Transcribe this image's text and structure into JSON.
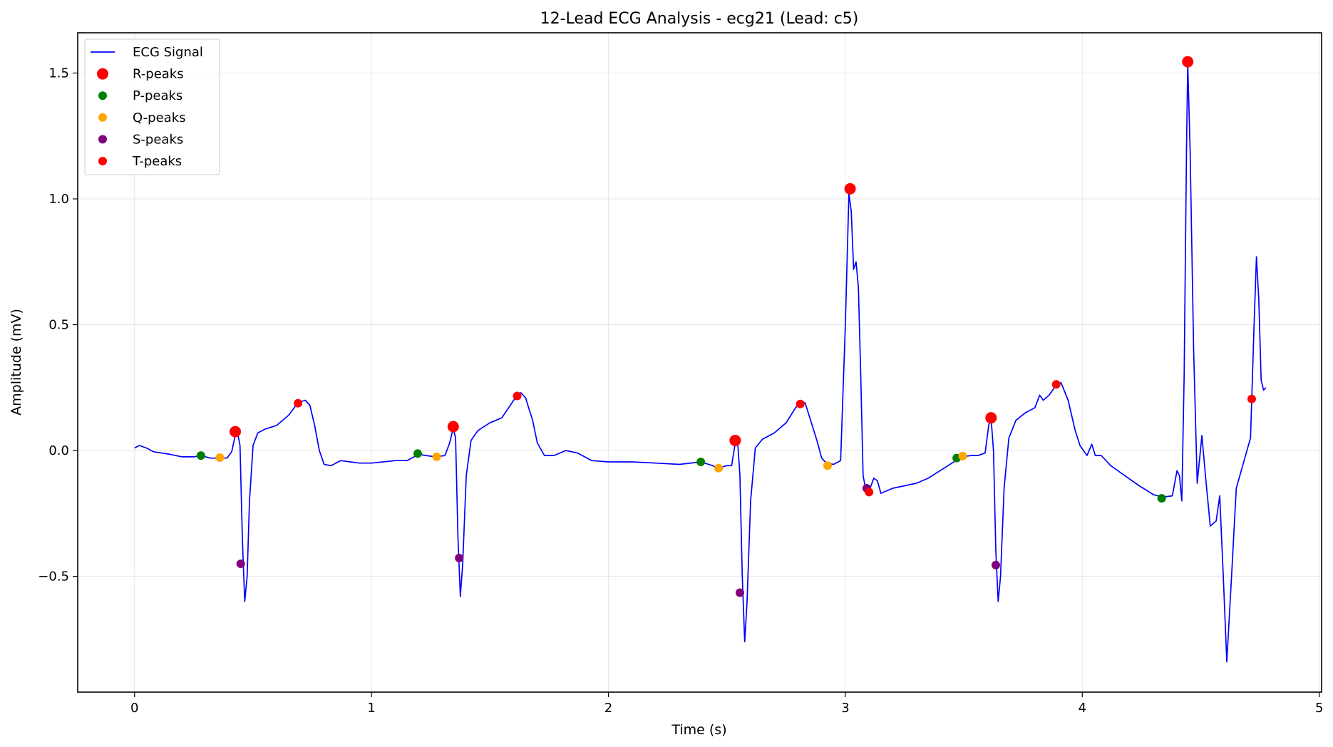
{
  "chart_data": {
    "type": "line",
    "title": "12-Lead ECG Analysis - ecg21 (Lead: c5)",
    "xlabel": "Time (s)",
    "ylabel": "Amplitude (mV)",
    "xlim": [
      -0.24,
      5.01
    ],
    "ylim": [
      -0.96,
      1.66
    ],
    "xticks": [
      0,
      1,
      2,
      3,
      4,
      5
    ],
    "xtick_labels": [
      "0",
      "1",
      "2",
      "3",
      "4",
      "5"
    ],
    "yticks": [
      -0.5,
      0.0,
      0.5,
      1.0,
      1.5
    ],
    "ytick_labels": [
      "−0.5",
      "0.0",
      "0.5",
      "1.0",
      "1.5"
    ],
    "grid": true,
    "legend_position": "top-left",
    "colors": {
      "signal": "#0000ff",
      "r_peaks": "#ff0000",
      "p_peaks": "#008000",
      "q_peaks": "#ffa500",
      "s_peaks": "#800080",
      "t_peaks": "#ff0000"
    },
    "series": [
      {
        "name": "ECG Signal",
        "kind": "line",
        "color": "#0000ff",
        "points": [
          [
            0.0,
            0.01
          ],
          [
            0.02,
            0.02
          ],
          [
            0.05,
            0.01
          ],
          [
            0.08,
            -0.005
          ],
          [
            0.15,
            -0.015
          ],
          [
            0.2,
            -0.025
          ],
          [
            0.25,
            -0.025
          ],
          [
            0.28,
            -0.02
          ],
          [
            0.32,
            -0.03
          ],
          [
            0.36,
            -0.03
          ],
          [
            0.39,
            -0.03
          ],
          [
            0.41,
            -0.005
          ],
          [
            0.425,
            0.06
          ],
          [
            0.435,
            0.07
          ],
          [
            0.445,
            0.02
          ],
          [
            0.455,
            -0.35
          ],
          [
            0.465,
            -0.6
          ],
          [
            0.475,
            -0.5
          ],
          [
            0.485,
            -0.2
          ],
          [
            0.5,
            0.02
          ],
          [
            0.52,
            0.07
          ],
          [
            0.55,
            0.085
          ],
          [
            0.6,
            0.1
          ],
          [
            0.65,
            0.14
          ],
          [
            0.69,
            0.19
          ],
          [
            0.72,
            0.2
          ],
          [
            0.74,
            0.18
          ],
          [
            0.76,
            0.1
          ],
          [
            0.78,
            0.0
          ],
          [
            0.8,
            -0.055
          ],
          [
            0.83,
            -0.06
          ],
          [
            0.87,
            -0.04
          ],
          [
            0.91,
            -0.045
          ],
          [
            0.95,
            -0.05
          ],
          [
            1.0,
            -0.05
          ],
          [
            1.05,
            -0.045
          ],
          [
            1.1,
            -0.04
          ],
          [
            1.15,
            -0.04
          ],
          [
            1.2,
            -0.015
          ],
          [
            1.23,
            -0.02
          ],
          [
            1.27,
            -0.025
          ],
          [
            1.31,
            -0.02
          ],
          [
            1.33,
            0.03
          ],
          [
            1.345,
            0.09
          ],
          [
            1.355,
            0.05
          ],
          [
            1.365,
            -0.35
          ],
          [
            1.375,
            -0.58
          ],
          [
            1.385,
            -0.45
          ],
          [
            1.4,
            -0.1
          ],
          [
            1.42,
            0.04
          ],
          [
            1.45,
            0.08
          ],
          [
            1.5,
            0.11
          ],
          [
            1.55,
            0.13
          ],
          [
            1.6,
            0.2
          ],
          [
            1.63,
            0.23
          ],
          [
            1.65,
            0.21
          ],
          [
            1.68,
            0.12
          ],
          [
            1.7,
            0.03
          ],
          [
            1.73,
            -0.02
          ],
          [
            1.77,
            -0.02
          ],
          [
            1.82,
            0.0
          ],
          [
            1.87,
            -0.01
          ],
          [
            1.93,
            -0.04
          ],
          [
            2.0,
            -0.045
          ],
          [
            2.1,
            -0.045
          ],
          [
            2.2,
            -0.05
          ],
          [
            2.3,
            -0.055
          ],
          [
            2.39,
            -0.045
          ],
          [
            2.44,
            -0.06
          ],
          [
            2.46,
            -0.07
          ],
          [
            2.5,
            -0.06
          ],
          [
            2.52,
            -0.06
          ],
          [
            2.535,
            0.03
          ],
          [
            2.545,
            0.04
          ],
          [
            2.555,
            -0.1
          ],
          [
            2.565,
            -0.5
          ],
          [
            2.575,
            -0.76
          ],
          [
            2.585,
            -0.6
          ],
          [
            2.6,
            -0.2
          ],
          [
            2.62,
            0.01
          ],
          [
            2.65,
            0.045
          ],
          [
            2.7,
            0.07
          ],
          [
            2.75,
            0.11
          ],
          [
            2.79,
            0.17
          ],
          [
            2.81,
            0.19
          ],
          [
            2.83,
            0.19
          ],
          [
            2.85,
            0.13
          ],
          [
            2.88,
            0.04
          ],
          [
            2.9,
            -0.03
          ],
          [
            2.92,
            -0.05
          ],
          [
            2.95,
            -0.055
          ],
          [
            2.98,
            -0.04
          ],
          [
            3.0,
            0.5
          ],
          [
            3.015,
            1.02
          ],
          [
            3.025,
            0.95
          ],
          [
            3.035,
            0.72
          ],
          [
            3.045,
            0.75
          ],
          [
            3.055,
            0.65
          ],
          [
            3.065,
            0.3
          ],
          [
            3.075,
            -0.1
          ],
          [
            3.085,
            -0.15
          ],
          [
            3.1,
            -0.16
          ],
          [
            3.12,
            -0.11
          ],
          [
            3.135,
            -0.12
          ],
          [
            3.15,
            -0.17
          ],
          [
            3.2,
            -0.15
          ],
          [
            3.25,
            -0.14
          ],
          [
            3.3,
            -0.13
          ],
          [
            3.35,
            -0.11
          ],
          [
            3.4,
            -0.08
          ],
          [
            3.45,
            -0.05
          ],
          [
            3.49,
            -0.025
          ],
          [
            3.53,
            -0.02
          ],
          [
            3.56,
            -0.02
          ],
          [
            3.59,
            -0.01
          ],
          [
            3.605,
            0.1
          ],
          [
            3.615,
            0.13
          ],
          [
            3.625,
            0.0
          ],
          [
            3.635,
            -0.4
          ],
          [
            3.645,
            -0.6
          ],
          [
            3.655,
            -0.5
          ],
          [
            3.67,
            -0.15
          ],
          [
            3.69,
            0.05
          ],
          [
            3.72,
            0.12
          ],
          [
            3.76,
            0.15
          ],
          [
            3.8,
            0.17
          ],
          [
            3.82,
            0.22
          ],
          [
            3.835,
            0.2
          ],
          [
            3.86,
            0.22
          ],
          [
            3.89,
            0.26
          ],
          [
            3.91,
            0.27
          ],
          [
            3.94,
            0.2
          ],
          [
            3.97,
            0.08
          ],
          [
            3.99,
            0.02
          ],
          [
            4.02,
            -0.02
          ],
          [
            4.04,
            0.025
          ],
          [
            4.055,
            -0.02
          ],
          [
            4.08,
            -0.02
          ],
          [
            4.12,
            -0.06
          ],
          [
            4.18,
            -0.1
          ],
          [
            4.24,
            -0.14
          ],
          [
            4.3,
            -0.175
          ],
          [
            4.34,
            -0.185
          ],
          [
            4.38,
            -0.18
          ],
          [
            4.4,
            -0.08
          ],
          [
            4.41,
            -0.1
          ],
          [
            4.42,
            -0.2
          ],
          [
            4.43,
            0.3
          ],
          [
            4.44,
            1.2
          ],
          [
            4.445,
            1.54
          ],
          [
            4.455,
            1.2
          ],
          [
            4.47,
            0.4
          ],
          [
            4.485,
            -0.13
          ],
          [
            4.505,
            0.06
          ],
          [
            4.52,
            -0.1
          ],
          [
            4.54,
            -0.3
          ],
          [
            4.565,
            -0.28
          ],
          [
            4.58,
            -0.18
          ],
          [
            4.595,
            -0.5
          ],
          [
            4.61,
            -0.84
          ],
          [
            4.63,
            -0.5
          ],
          [
            4.65,
            -0.15
          ],
          [
            4.68,
            -0.05
          ],
          [
            4.71,
            0.05
          ],
          [
            4.725,
            0.5
          ],
          [
            4.735,
            0.77
          ],
          [
            4.745,
            0.6
          ],
          [
            4.755,
            0.28
          ],
          [
            4.765,
            0.24
          ],
          [
            4.775,
            0.25
          ]
        ]
      },
      {
        "name": "R-peaks",
        "kind": "marker",
        "size": "large",
        "color": "#ff0000",
        "points": [
          [
            0.425,
            0.075
          ],
          [
            1.345,
            0.095
          ],
          [
            2.535,
            0.04
          ],
          [
            3.02,
            1.04
          ],
          [
            3.615,
            0.13
          ],
          [
            4.445,
            1.545
          ]
        ]
      },
      {
        "name": "P-peaks",
        "kind": "marker",
        "size": "small",
        "color": "#008000",
        "points": [
          [
            0.28,
            -0.02
          ],
          [
            1.195,
            -0.012
          ],
          [
            2.39,
            -0.045
          ],
          [
            3.47,
            -0.03
          ],
          [
            4.335,
            -0.19
          ]
        ]
      },
      {
        "name": "Q-peaks",
        "kind": "marker",
        "size": "small",
        "color": "#ffa500",
        "points": [
          [
            0.36,
            -0.028
          ],
          [
            1.275,
            -0.025
          ],
          [
            2.465,
            -0.07
          ],
          [
            2.925,
            -0.06
          ],
          [
            3.495,
            -0.022
          ]
        ]
      },
      {
        "name": "S-peaks",
        "kind": "marker",
        "size": "small",
        "color": "#800080",
        "points": [
          [
            0.448,
            -0.45
          ],
          [
            1.37,
            -0.427
          ],
          [
            2.555,
            -0.565
          ],
          [
            3.09,
            -0.15
          ],
          [
            3.635,
            -0.455
          ]
        ]
      },
      {
        "name": "T-peaks",
        "kind": "marker",
        "size": "small",
        "color": "#ff0000",
        "points": [
          [
            0.69,
            0.188
          ],
          [
            1.615,
            0.217
          ],
          [
            2.81,
            0.185
          ],
          [
            3.1,
            -0.165
          ],
          [
            3.89,
            0.263
          ],
          [
            4.715,
            0.205
          ]
        ]
      }
    ],
    "legend": [
      {
        "label": "ECG Signal",
        "kind": "line",
        "color": "#0000ff"
      },
      {
        "label": "R-peaks",
        "kind": "marker",
        "size": "large",
        "color": "#ff0000"
      },
      {
        "label": "P-peaks",
        "kind": "marker",
        "size": "small",
        "color": "#008000"
      },
      {
        "label": "Q-peaks",
        "kind": "marker",
        "size": "small",
        "color": "#ffa500"
      },
      {
        "label": "S-peaks",
        "kind": "marker",
        "size": "small",
        "color": "#800080"
      },
      {
        "label": "T-peaks",
        "kind": "marker",
        "size": "small",
        "color": "#ff0000"
      }
    ]
  }
}
